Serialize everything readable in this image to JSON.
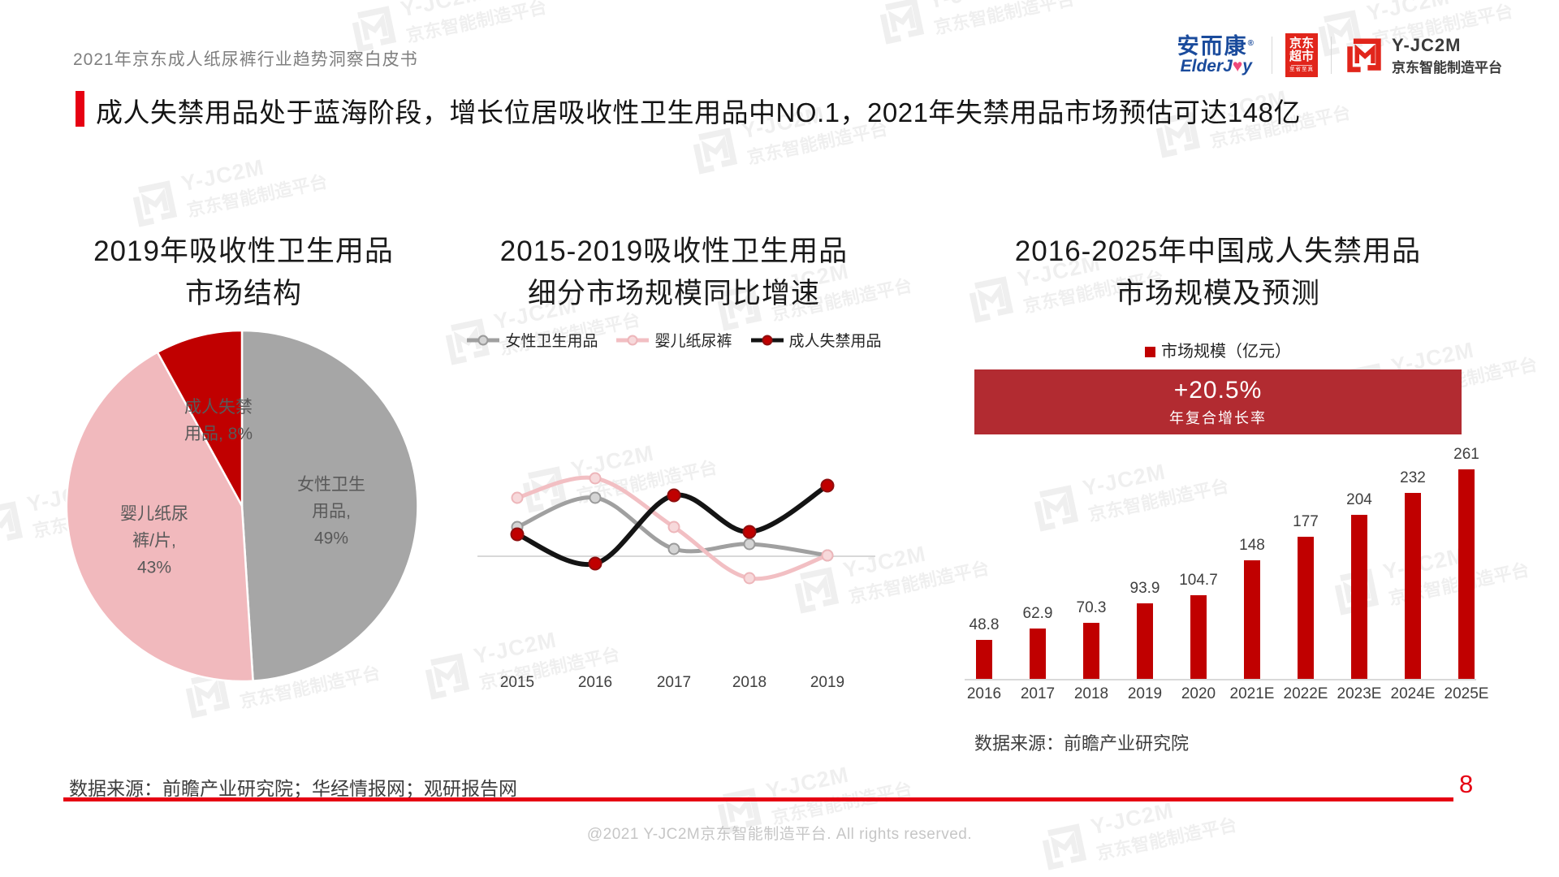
{
  "page": {
    "doc_title": "2021年京东成人纸尿裤行业趋势洞察白皮书",
    "main_title": "成人失禁用品处于蓝海阶段，增长位居吸收性卫生用品中NO.1，2021年失禁用品市场预估可达148亿",
    "footer_source": "数据来源：前瞻产业研究院；华经情报网；观研报告网",
    "page_number": "8",
    "copyright": "@2021 Y-JC2M京东智能制造平台. All rights reserved."
  },
  "logos": {
    "elderjoy_cn": "安而康",
    "elderjoy_reg": "®",
    "elderjoy_en_left": "ElderJ",
    "elderjoy_en_heart": "♥",
    "elderjoy_en_right": "y",
    "jd_badge_line1": "京东",
    "jd_badge_line2": "超市",
    "jd_badge_sub": "至省至真",
    "yjc2m_name": "Y-JC2M",
    "yjc2m_sub": "京东智能制造平台"
  },
  "watermark": {
    "line1": "Y-JC2M",
    "line2": "京东智能制造平台"
  },
  "colors": {
    "accent_red": "#e60012",
    "dark_red": "#c00000",
    "banner_red": "#b22b31",
    "pie_grey": "#a6a6a6",
    "pie_pink": "#f1b9bd",
    "jd_red": "#e1251b",
    "elderjoy_blue": "#1a4b9c"
  },
  "chart_data": [
    {
      "type": "pie",
      "title_lines": [
        "2019年吸收性卫生用品",
        "市场结构"
      ],
      "slices": [
        {
          "label": "女性卫生用品",
          "value": 49,
          "color": "#a6a6a6",
          "label_lines": [
            "女性卫生",
            "用品,",
            "49%"
          ]
        },
        {
          "label": "婴儿纸尿裤/片",
          "value": 43,
          "color": "#f1b9bd",
          "label_lines": [
            "婴儿纸尿",
            "裤/片,",
            "43%"
          ]
        },
        {
          "label": "成人失禁用品",
          "value": 8,
          "color": "#c00000",
          "label_lines": [
            "成人失禁",
            "用品, 8%"
          ]
        }
      ],
      "layout": "start at 12 o'clock, clockwise"
    },
    {
      "type": "line",
      "title_lines": [
        "2015-2019吸收性卫生用品",
        "细分市场规模同比增速"
      ],
      "x": [
        "2015",
        "2016",
        "2017",
        "2018",
        "2019"
      ],
      "series": [
        {
          "name": "女性卫生用品",
          "color": "#a0a0a0",
          "marker_fill": "#d4d4d4",
          "values": [
            12,
            24,
            3,
            5,
            0.3
          ]
        },
        {
          "name": "婴儿纸尿裤",
          "color": "#f2bfc3",
          "marker_fill": "#f7d9db",
          "values": [
            24,
            32,
            12,
            -9,
            0.3
          ]
        },
        {
          "name": "成人失禁用品",
          "color": "#141414",
          "marker_fill": "#c00000",
          "values": [
            9,
            -3,
            25,
            10,
            29
          ]
        }
      ],
      "note": "y轴未标注刻度，数值为从图形位置估读的同比增速相对值(%)，基线为0"
    },
    {
      "type": "bar",
      "title_lines": [
        "2016-2025年中国成人失禁用品",
        "市场规模及预测"
      ],
      "legend": "市场规模（亿元）",
      "banner": {
        "headline": "+20.5%",
        "sub": "年复合增长率"
      },
      "categories": [
        "2016",
        "2017",
        "2018",
        "2019",
        "2020",
        "2021E",
        "2022E",
        "2023E",
        "2024E",
        "2025E"
      ],
      "values": [
        48.8,
        62.9,
        70.3,
        93.9,
        104.7,
        148,
        177,
        204,
        232,
        261
      ],
      "bar_color": "#c00000",
      "source": "数据来源：前瞻产业研究院"
    }
  ]
}
